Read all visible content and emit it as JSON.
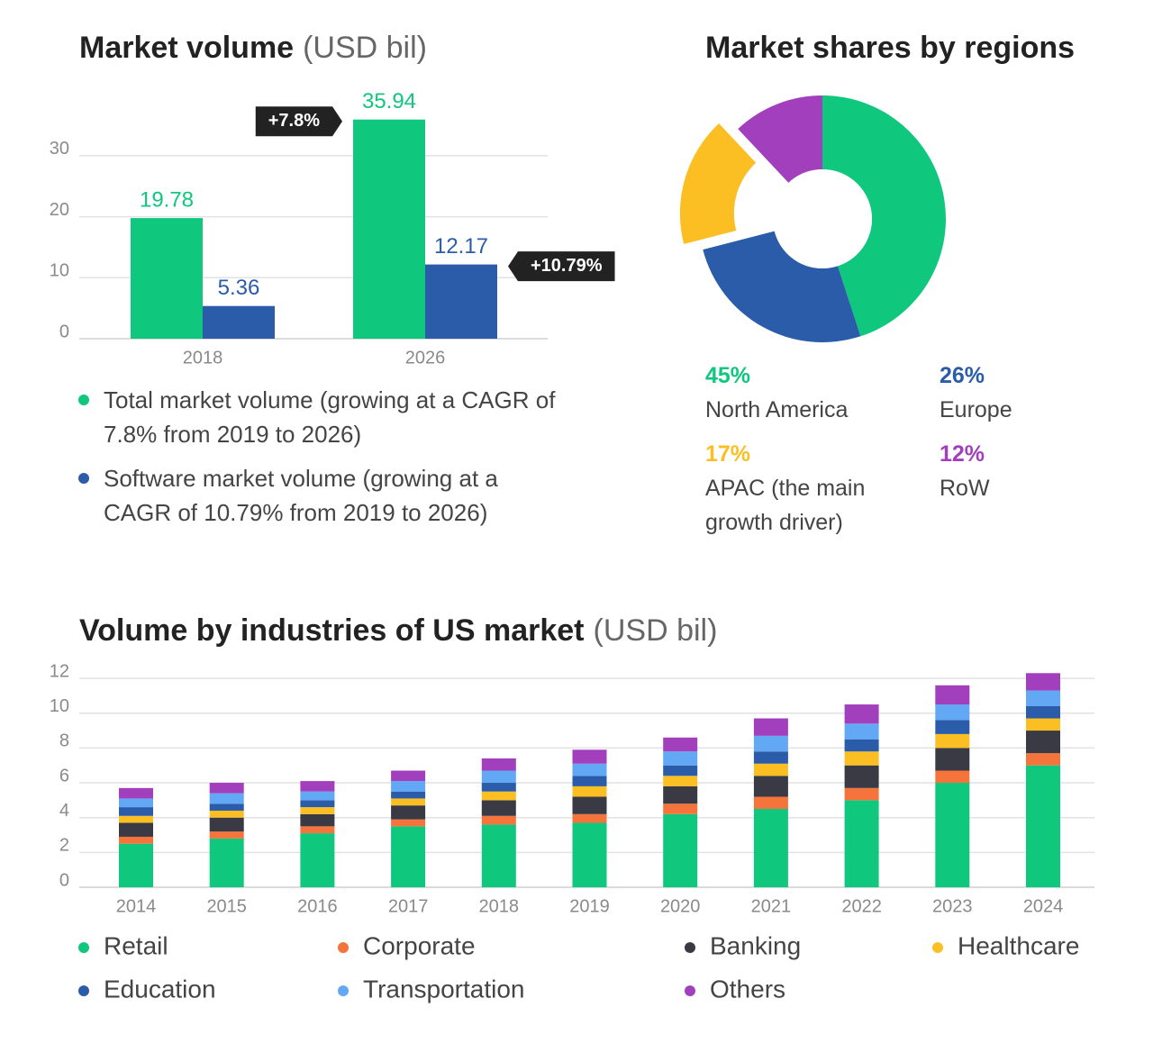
{
  "chart_data": [
    {
      "type": "bar",
      "title": "Market volume",
      "title_unit": "(USD bil)",
      "categories": [
        "2018",
        "2026"
      ],
      "series": [
        {
          "name": "Total market volume (growing at a CAGR of 7.8% from 2019 to 2026)",
          "color": "#0fc77d",
          "values": [
            19.78,
            35.94
          ]
        },
        {
          "name": "Software market volume (growing at a CAGR of 10.79% from 2019 to 2026)",
          "color": "#2a5caa",
          "values": [
            5.36,
            12.17
          ]
        }
      ],
      "annotations": [
        "+7.8%",
        "+10.79%"
      ],
      "ylim": [
        0,
        36
      ],
      "yticks": [
        0,
        10,
        20,
        30
      ],
      "grid": true
    },
    {
      "type": "pie",
      "title": "Market shares by regions",
      "categories": [
        "North America",
        "Europe",
        "APAC (the main growth driver)",
        "RoW"
      ],
      "values": [
        45,
        26,
        17,
        12
      ],
      "value_labels": [
        "45%",
        "26%",
        "17%",
        "12%"
      ],
      "colors": [
        "#0fc77d",
        "#2a5caa",
        "#fbbf24",
        "#a23fbd"
      ]
    },
    {
      "type": "stacked_bar",
      "title": "Volume by industries of US market",
      "title_unit": "(USD bil)",
      "categories": [
        "2014",
        "2015",
        "2016",
        "2017",
        "2018",
        "2019",
        "2020",
        "2021",
        "2022",
        "2023",
        "2024"
      ],
      "series": [
        {
          "name": "Retail",
          "color": "#0fc77d",
          "values": [
            2.5,
            2.8,
            3.1,
            3.5,
            3.6,
            3.7,
            4.2,
            4.5,
            5.0,
            6.0,
            7.0
          ]
        },
        {
          "name": "Corporate",
          "color": "#f4743b",
          "values": [
            0.4,
            0.4,
            0.4,
            0.4,
            0.5,
            0.5,
            0.6,
            0.7,
            0.7,
            0.7,
            0.7
          ]
        },
        {
          "name": "Banking",
          "color": "#3a3a44",
          "values": [
            0.8,
            0.8,
            0.7,
            0.8,
            0.9,
            1.0,
            1.0,
            1.2,
            1.3,
            1.3,
            1.3
          ]
        },
        {
          "name": "Healthcare",
          "color": "#fbbf24",
          "values": [
            0.4,
            0.4,
            0.4,
            0.4,
            0.5,
            0.6,
            0.6,
            0.7,
            0.8,
            0.8,
            0.7
          ]
        },
        {
          "name": "Education",
          "color": "#2a5caa",
          "values": [
            0.5,
            0.4,
            0.4,
            0.4,
            0.5,
            0.6,
            0.6,
            0.7,
            0.7,
            0.8,
            0.7
          ]
        },
        {
          "name": "Transportation",
          "color": "#62a8f5",
          "values": [
            0.5,
            0.6,
            0.5,
            0.6,
            0.7,
            0.7,
            0.8,
            0.9,
            0.9,
            0.9,
            0.9
          ]
        },
        {
          "name": "Others",
          "color": "#a23fbd",
          "values": [
            0.6,
            0.6,
            0.6,
            0.6,
            0.7,
            0.8,
            0.8,
            1.0,
            1.1,
            1.1,
            1.0
          ]
        }
      ],
      "ylim": [
        0,
        12.5
      ],
      "yticks": [
        0,
        2,
        4,
        6,
        8,
        10,
        12
      ],
      "grid": true
    }
  ]
}
